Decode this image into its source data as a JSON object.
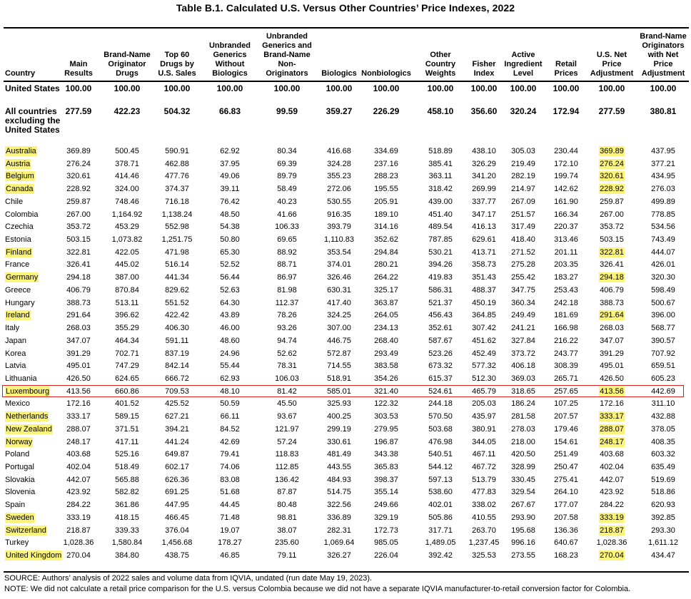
{
  "title": "Table B.1. Calculated U.S. Versus Other Countries’ Price Indexes, 2022",
  "highlight_color": "#fbf37a",
  "box_color": "#d42020",
  "columns": [
    {
      "key": "country",
      "label": "Country"
    },
    {
      "key": "main",
      "label": "Main Results"
    },
    {
      "key": "brand",
      "label": "Brand-Name Originator Drugs"
    },
    {
      "key": "top60",
      "label": "Top 60 Drugs by U.S. Sales"
    },
    {
      "key": "unbranded_generics",
      "label": "Unbranded Generics Without Biologics"
    },
    {
      "key": "unbranded_non",
      "label": "Unbranded Generics and Brand-Name Non-Originators"
    },
    {
      "key": "biologics",
      "label": "Biologics"
    },
    {
      "key": "nonbiologics",
      "label": "Nonbiologics"
    },
    {
      "key": "other_weights",
      "label": "Other Country Weights"
    },
    {
      "key": "fisher",
      "label": "Fisher Index"
    },
    {
      "key": "active",
      "label": "Active Ingredient Level"
    },
    {
      "key": "retail",
      "label": "Retail Prices"
    },
    {
      "key": "us_net",
      "label": "U.S. Net Price Adjustment"
    },
    {
      "key": "brand_net",
      "label": "Brand-Name Originators with Net Price Adjustment"
    }
  ],
  "header_lines": [
    [
      "Country"
    ],
    [
      "Main",
      "Results"
    ],
    [
      "Brand-Name",
      "Originator",
      "Drugs"
    ],
    [
      "Top 60",
      "Drugs by",
      "U.S. Sales"
    ],
    [
      "Unbranded",
      "Generics",
      "Without",
      "Biologics"
    ],
    [
      "Unbranded",
      "Generics and",
      "Brand-Name",
      "Non-",
      "Originators"
    ],
    [
      "Biologics"
    ],
    [
      "Nonbiologics"
    ],
    [
      "Other",
      "Country",
      "Weights"
    ],
    [
      "Fisher",
      "Index"
    ],
    [
      "Active",
      "Ingredient",
      "Level"
    ],
    [
      "Retail",
      "Prices"
    ],
    [
      "U.S. Net",
      "Price",
      "Adjustment"
    ],
    [
      "Brand-Name",
      "Originators",
      "with Net",
      "Price",
      "Adjustment"
    ]
  ],
  "summary_rows": [
    {
      "country": "United States",
      "values": [
        "100.00",
        "100.00",
        "100.00",
        "100.00",
        "100.00",
        "100.00",
        "100.00",
        "100.00",
        "100.00",
        "100.00",
        "100.00",
        "100.00",
        "100.00"
      ]
    },
    {
      "country": "All countries excluding the United States",
      "values": [
        "277.59",
        "422.23",
        "504.32",
        "66.83",
        "99.59",
        "359.27",
        "226.29",
        "458.10",
        "356.60",
        "320.24",
        "172.94",
        "277.59",
        "380.81"
      ]
    }
  ],
  "rows": [
    {
      "country": "Australia",
      "values": [
        "369.89",
        "500.45",
        "590.91",
        "62.92",
        "80.34",
        "416.68",
        "334.69",
        "518.89",
        "438.10",
        "305.03",
        "230.44",
        "369.89",
        "437.95"
      ],
      "highlight": true
    },
    {
      "country": "Austria",
      "values": [
        "276.24",
        "378.71",
        "462.88",
        "37.95",
        "69.39",
        "324.28",
        "237.16",
        "385.41",
        "326.29",
        "219.49",
        "172.10",
        "276.24",
        "377.21"
      ],
      "highlight": true
    },
    {
      "country": "Belgium",
      "values": [
        "320.61",
        "414.46",
        "477.76",
        "49.06",
        "89.79",
        "355.23",
        "288.23",
        "363.11",
        "341.20",
        "282.19",
        "199.74",
        "320.61",
        "434.95"
      ],
      "highlight": true
    },
    {
      "country": "Canada",
      "values": [
        "228.92",
        "324.00",
        "374.37",
        "39.11",
        "58.49",
        "272.06",
        "195.55",
        "318.42",
        "269.99",
        "214.97",
        "142.62",
        "228.92",
        "276.03"
      ],
      "highlight": true
    },
    {
      "country": "Chile",
      "values": [
        "259.87",
        "748.46",
        "716.18",
        "76.42",
        "40.23",
        "530.55",
        "205.91",
        "439.00",
        "337.77",
        "267.09",
        "161.90",
        "259.87",
        "499.89"
      ],
      "highlight": false
    },
    {
      "country": "Colombia",
      "values": [
        "267.00",
        "1,164.92",
        "1,138.24",
        "48.50",
        "41.66",
        "916.35",
        "189.10",
        "451.40",
        "347.17",
        "251.57",
        "166.34",
        "267.00",
        "778.85"
      ],
      "highlight": false
    },
    {
      "country": "Czechia",
      "values": [
        "353.72",
        "453.29",
        "552.98",
        "54.38",
        "106.33",
        "393.79",
        "314.16",
        "489.54",
        "416.13",
        "317.49",
        "220.37",
        "353.72",
        "534.56"
      ],
      "highlight": false
    },
    {
      "country": "Estonia",
      "values": [
        "503.15",
        "1,073.82",
        "1,251.75",
        "50.80",
        "69.65",
        "1,110.83",
        "352.62",
        "787.85",
        "629.61",
        "418.40",
        "313.46",
        "503.15",
        "743.49"
      ],
      "highlight": false
    },
    {
      "country": "Finland",
      "values": [
        "322.81",
        "422.05",
        "471.98",
        "65.30",
        "88.92",
        "353.54",
        "294.84",
        "530.21",
        "413.71",
        "271.52",
        "201.11",
        "322.81",
        "444.07"
      ],
      "highlight": true
    },
    {
      "country": "France",
      "values": [
        "326.41",
        "445.02",
        "516.14",
        "52.52",
        "88.71",
        "374.01",
        "280.21",
        "394.26",
        "358.73",
        "275.28",
        "203.35",
        "326.41",
        "426.01"
      ],
      "highlight": false
    },
    {
      "country": "Germany",
      "values": [
        "294.18",
        "387.00",
        "441.34",
        "56.44",
        "86.97",
        "326.46",
        "264.22",
        "419.83",
        "351.43",
        "255.42",
        "183.27",
        "294.18",
        "320.30"
      ],
      "highlight": true
    },
    {
      "country": "Greece",
      "values": [
        "406.79",
        "870.84",
        "829.62",
        "52.63",
        "81.98",
        "630.31",
        "325.17",
        "586.31",
        "488.37",
        "347.75",
        "253.43",
        "406.79",
        "598.49"
      ],
      "highlight": false
    },
    {
      "country": "Hungary",
      "values": [
        "388.73",
        "513.11",
        "551.52",
        "64.30",
        "112.37",
        "417.40",
        "363.87",
        "521.37",
        "450.19",
        "360.34",
        "242.18",
        "388.73",
        "500.67"
      ],
      "highlight": false
    },
    {
      "country": "Ireland",
      "values": [
        "291.64",
        "396.62",
        "422.42",
        "43.89",
        "78.26",
        "324.25",
        "264.05",
        "456.43",
        "364.85",
        "249.49",
        "181.69",
        "291.64",
        "396.00"
      ],
      "highlight": true
    },
    {
      "country": "Italy",
      "values": [
        "268.03",
        "355.29",
        "406.30",
        "46.00",
        "93.26",
        "307.00",
        "234.13",
        "352.61",
        "307.42",
        "241.21",
        "166.98",
        "268.03",
        "568.77"
      ],
      "highlight": false
    },
    {
      "country": "Japan",
      "values": [
        "347.07",
        "464.34",
        "591.11",
        "48.60",
        "94.74",
        "446.75",
        "268.40",
        "587.67",
        "451.62",
        "327.84",
        "216.22",
        "347.07",
        "390.57"
      ],
      "highlight": false
    },
    {
      "country": "Korea",
      "values": [
        "391.29",
        "702.71",
        "837.19",
        "24.96",
        "52.62",
        "572.87",
        "293.49",
        "523.26",
        "452.49",
        "373.72",
        "243.77",
        "391.29",
        "707.92"
      ],
      "highlight": false
    },
    {
      "country": "Latvia",
      "values": [
        "495.01",
        "747.29",
        "842.14",
        "55.44",
        "78.31",
        "714.55",
        "383.58",
        "673.32",
        "577.32",
        "406.18",
        "308.39",
        "495.01",
        "659.51"
      ],
      "highlight": false
    },
    {
      "country": "Lithuania",
      "values": [
        "426.50",
        "624.65",
        "666.72",
        "62.93",
        "106.03",
        "518.91",
        "354.26",
        "615.37",
        "512.30",
        "369.03",
        "265.71",
        "426.50",
        "605.23"
      ],
      "highlight": false
    },
    {
      "country": "Luxembourg",
      "values": [
        "413.56",
        "660.86",
        "709.53",
        "48.10",
        "81.42",
        "585.01",
        "321.40",
        "524.61",
        "465.79",
        "318.65",
        "257.65",
        "413.56",
        "442.69"
      ],
      "highlight": true,
      "boxed": true
    },
    {
      "country": "Mexico",
      "values": [
        "172.16",
        "401.52",
        "425.52",
        "50.59",
        "45.50",
        "325.93",
        "122.32",
        "244.18",
        "205.03",
        "186.24",
        "107.25",
        "172.16",
        "311.10"
      ],
      "highlight": false
    },
    {
      "country": "Netherlands",
      "values": [
        "333.17",
        "589.15",
        "627.21",
        "66.11",
        "93.67",
        "400.25",
        "303.53",
        "570.50",
        "435.97",
        "281.58",
        "207.57",
        "333.17",
        "432.88"
      ],
      "highlight": true
    },
    {
      "country": "New Zealand",
      "values": [
        "288.07",
        "371.51",
        "394.21",
        "84.52",
        "121.97",
        "299.19",
        "279.95",
        "503.68",
        "380.91",
        "278.03",
        "179.46",
        "288.07",
        "378.05"
      ],
      "highlight": true
    },
    {
      "country": "Norway",
      "values": [
        "248.17",
        "417.11",
        "441.24",
        "42.69",
        "57.24",
        "330.61",
        "196.87",
        "476.98",
        "344.05",
        "218.00",
        "154.61",
        "248.17",
        "408.35"
      ],
      "highlight": true
    },
    {
      "country": "Poland",
      "values": [
        "403.68",
        "525.16",
        "649.87",
        "79.41",
        "118.83",
        "481.49",
        "343.38",
        "540.51",
        "467.11",
        "420.50",
        "251.49",
        "403.68",
        "603.32"
      ],
      "highlight": false
    },
    {
      "country": "Portugal",
      "values": [
        "402.04",
        "518.49",
        "602.17",
        "74.06",
        "112.85",
        "443.55",
        "365.83",
        "544.12",
        "467.72",
        "328.99",
        "250.47",
        "402.04",
        "635.49"
      ],
      "highlight": false
    },
    {
      "country": "Slovakia",
      "values": [
        "442.07",
        "565.88",
        "626.36",
        "83.08",
        "136.42",
        "484.93",
        "398.37",
        "597.13",
        "513.79",
        "330.45",
        "275.41",
        "442.07",
        "519.69"
      ],
      "highlight": false
    },
    {
      "country": "Slovenia",
      "values": [
        "423.92",
        "582.82",
        "691.25",
        "51.68",
        "87.87",
        "514.75",
        "355.14",
        "538.60",
        "477.83",
        "329.54",
        "264.10",
        "423.92",
        "518.86"
      ],
      "highlight": false
    },
    {
      "country": "Spain",
      "values": [
        "284.22",
        "361.86",
        "447.95",
        "44.45",
        "80.48",
        "322.56",
        "249.66",
        "402.01",
        "338.02",
        "267.67",
        "177.07",
        "284.22",
        "620.93"
      ],
      "highlight": false
    },
    {
      "country": "Sweden",
      "values": [
        "333.19",
        "418.15",
        "466.45",
        "71.48",
        "98.81",
        "336.89",
        "329.19",
        "505.86",
        "410.55",
        "293.90",
        "207.58",
        "333.19",
        "392.85"
      ],
      "highlight": true
    },
    {
      "country": "Switzerland",
      "values": [
        "218.87",
        "339.33",
        "376.04",
        "19.07",
        "38.07",
        "282.31",
        "172.73",
        "317.71",
        "263.70",
        "195.68",
        "136.36",
        "218.87",
        "293.30"
      ],
      "highlight": true
    },
    {
      "country": "Turkey",
      "values": [
        "1,028.36",
        "1,580.84",
        "1,456.68",
        "178.27",
        "235.60",
        "1,069.64",
        "985.05",
        "1,489.05",
        "1,237.45",
        "996.16",
        "640.67",
        "1,028.36",
        "1,611.12"
      ],
      "highlight": false
    },
    {
      "country": "United Kingdom",
      "values": [
        "270.04",
        "384.80",
        "438.75",
        "46.85",
        "79.11",
        "326.27",
        "226.04",
        "392.42",
        "325.53",
        "273.55",
        "168.23",
        "270.04",
        "434.47"
      ],
      "highlight": true
    }
  ],
  "footnotes": [
    "SOURCE: Authors’ analysis of 2022 sales and volume data from IQVIA, undated (run date May 19, 2023).",
    "NOTE: We did not calculate a retail price comparison for the U.S. versus Colombia because we did not have a separate IQVIA manufacturer-to-retail conversion factor for Colombia."
  ]
}
